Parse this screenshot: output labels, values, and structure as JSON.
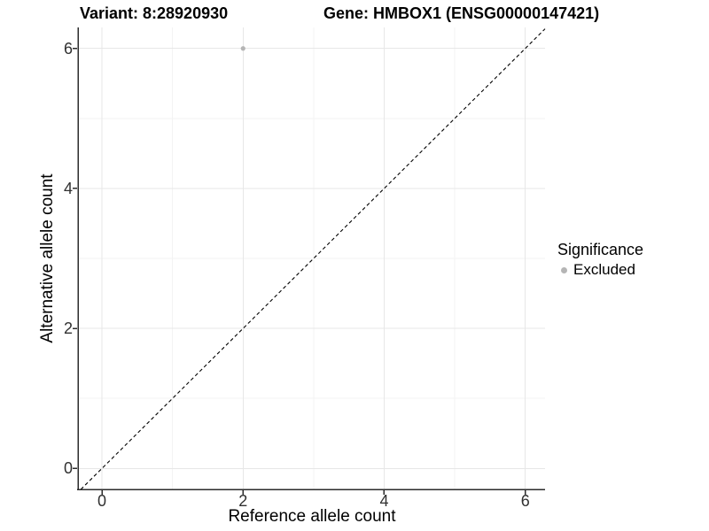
{
  "chart_data": {
    "type": "scatter",
    "titles": {
      "variant": "Variant: 8:28920930",
      "gene": "Gene: HMBOX1 (ENSG00000147421)"
    },
    "xlabel": "Reference allele count",
    "ylabel": "Alternative allele count",
    "xlim": [
      -0.34,
      6.28
    ],
    "ylim": [
      -0.3,
      6.3
    ],
    "xticks": [
      0,
      2,
      4,
      6
    ],
    "yticks": [
      0,
      2,
      4,
      6
    ],
    "xticks_minor": [
      1,
      3,
      5
    ],
    "yticks_minor": [
      1,
      3,
      5
    ],
    "grid": true,
    "points": [
      {
        "x": 2,
        "y": 6,
        "series": "Excluded"
      }
    ],
    "series": [
      {
        "name": "Excluded",
        "color": "#b5b5b5"
      }
    ],
    "identity_line": {
      "style": "dashed",
      "slope": 1,
      "intercept": 0,
      "color": "#000000"
    },
    "legend": {
      "title": "Significance",
      "position": "right",
      "items": [
        {
          "label": "Excluded",
          "color": "#b5b5b5"
        }
      ]
    }
  },
  "colors": {
    "background": "#ffffff",
    "grid_major": "#e7e7e7",
    "grid_minor": "#f3f3f3",
    "axis_line": "#2b2b2b",
    "tick_mark": "#2b2b2b",
    "identity_line": "#000000"
  }
}
